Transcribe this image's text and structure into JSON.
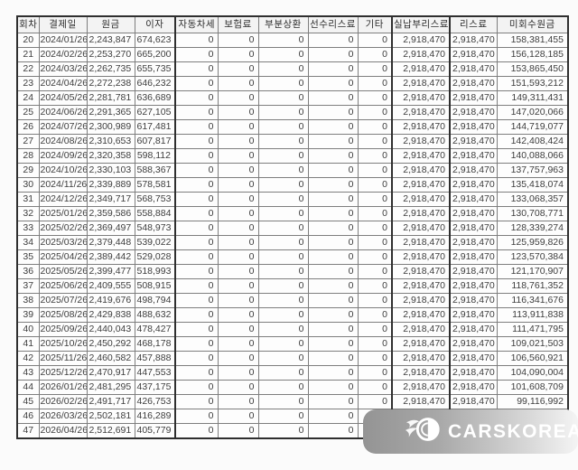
{
  "watermark": {
    "brand": "CARSKOREA",
    "icon": "flame-wheel-icon",
    "banner_gradient_start": "#949494",
    "banner_gradient_end": "#f4f4f4",
    "brand_text_color": "#ffffff"
  },
  "table": {
    "columns": [
      "회차",
      "결제일",
      "원금",
      "이자",
      "자동차세",
      "보험료",
      "부분상환",
      "선수리스료",
      "기타",
      "실납부리스료",
      "리스료",
      "미회수원금"
    ],
    "rows": [
      [
        "20",
        "2024/01/26",
        "2,243,847",
        "674,623",
        "0",
        "0",
        "0",
        "0",
        "0",
        "2,918,470",
        "2,918,470",
        "158,381,455"
      ],
      [
        "21",
        "2024/02/26",
        "2,253,270",
        "665,200",
        "0",
        "0",
        "0",
        "0",
        "0",
        "2,918,470",
        "2,918,470",
        "156,128,185"
      ],
      [
        "22",
        "2024/03/26",
        "2,262,735",
        "655,735",
        "0",
        "0",
        "0",
        "0",
        "0",
        "2,918,470",
        "2,918,470",
        "153,865,450"
      ],
      [
        "23",
        "2024/04/26",
        "2,272,238",
        "646,232",
        "0",
        "0",
        "0",
        "0",
        "0",
        "2,918,470",
        "2,918,470",
        "151,593,212"
      ],
      [
        "24",
        "2024/05/26",
        "2,281,781",
        "636,689",
        "0",
        "0",
        "0",
        "0",
        "0",
        "2,918,470",
        "2,918,470",
        "149,311,431"
      ],
      [
        "25",
        "2024/06/26",
        "2,291,365",
        "627,105",
        "0",
        "0",
        "0",
        "0",
        "0",
        "2,918,470",
        "2,918,470",
        "147,020,066"
      ],
      [
        "26",
        "2024/07/26",
        "2,300,989",
        "617,481",
        "0",
        "0",
        "0",
        "0",
        "0",
        "2,918,470",
        "2,918,470",
        "144,719,077"
      ],
      [
        "27",
        "2024/08/26",
        "2,310,653",
        "607,817",
        "0",
        "0",
        "0",
        "0",
        "0",
        "2,918,470",
        "2,918,470",
        "142,408,424"
      ],
      [
        "28",
        "2024/09/26",
        "2,320,358",
        "598,112",
        "0",
        "0",
        "0",
        "0",
        "0",
        "2,918,470",
        "2,918,470",
        "140,088,066"
      ],
      [
        "29",
        "2024/10/26",
        "2,330,103",
        "588,367",
        "0",
        "0",
        "0",
        "0",
        "0",
        "2,918,470",
        "2,918,470",
        "137,757,963"
      ],
      [
        "30",
        "2024/11/26",
        "2,339,889",
        "578,581",
        "0",
        "0",
        "0",
        "0",
        "0",
        "2,918,470",
        "2,918,470",
        "135,418,074"
      ],
      [
        "31",
        "2024/12/26",
        "2,349,717",
        "568,753",
        "0",
        "0",
        "0",
        "0",
        "0",
        "2,918,470",
        "2,918,470",
        "133,068,357"
      ],
      [
        "32",
        "2025/01/26",
        "2,359,586",
        "558,884",
        "0",
        "0",
        "0",
        "0",
        "0",
        "2,918,470",
        "2,918,470",
        "130,708,771"
      ],
      [
        "33",
        "2025/02/26",
        "2,369,497",
        "548,973",
        "0",
        "0",
        "0",
        "0",
        "0",
        "2,918,470",
        "2,918,470",
        "128,339,274"
      ],
      [
        "34",
        "2025/03/26",
        "2,379,448",
        "539,022",
        "0",
        "0",
        "0",
        "0",
        "0",
        "2,918,470",
        "2,918,470",
        "125,959,826"
      ],
      [
        "35",
        "2025/04/26",
        "2,389,442",
        "529,028",
        "0",
        "0",
        "0",
        "0",
        "0",
        "2,918,470",
        "2,918,470",
        "123,570,384"
      ],
      [
        "36",
        "2025/05/26",
        "2,399,477",
        "518,993",
        "0",
        "0",
        "0",
        "0",
        "0",
        "2,918,470",
        "2,918,470",
        "121,170,907"
      ],
      [
        "37",
        "2025/06/26",
        "2,409,555",
        "508,915",
        "0",
        "0",
        "0",
        "0",
        "0",
        "2,918,470",
        "2,918,470",
        "118,761,352"
      ],
      [
        "38",
        "2025/07/26",
        "2,419,676",
        "498,794",
        "0",
        "0",
        "0",
        "0",
        "0",
        "2,918,470",
        "2,918,470",
        "116,341,676"
      ],
      [
        "39",
        "2025/08/26",
        "2,429,838",
        "488,632",
        "0",
        "0",
        "0",
        "0",
        "0",
        "2,918,470",
        "2,918,470",
        "113,911,838"
      ],
      [
        "40",
        "2025/09/26",
        "2,440,043",
        "478,427",
        "0",
        "0",
        "0",
        "0",
        "0",
        "2,918,470",
        "2,918,470",
        "111,471,795"
      ],
      [
        "41",
        "2025/10/26",
        "2,450,292",
        "468,178",
        "0",
        "0",
        "0",
        "0",
        "0",
        "2,918,470",
        "2,918,470",
        "109,021,503"
      ],
      [
        "42",
        "2025/11/26",
        "2,460,582",
        "457,888",
        "0",
        "0",
        "0",
        "0",
        "0",
        "2,918,470",
        "2,918,470",
        "106,560,921"
      ],
      [
        "43",
        "2025/12/26",
        "2,470,917",
        "447,553",
        "0",
        "0",
        "0",
        "0",
        "0",
        "2,918,470",
        "2,918,470",
        "104,090,004"
      ],
      [
        "44",
        "2026/01/26",
        "2,481,295",
        "437,175",
        "0",
        "0",
        "0",
        "0",
        "0",
        "2,918,470",
        "2,918,470",
        "101,608,709"
      ],
      [
        "45",
        "2026/02/26",
        "2,491,717",
        "426,753",
        "0",
        "0",
        "0",
        "0",
        "0",
        "2,918,470",
        "2,918,470",
        "99,116,992"
      ],
      [
        "46",
        "2026/03/26",
        "2,502,181",
        "416,289",
        "0",
        "0",
        "0",
        "0",
        "",
        "",
        "",
        ""
      ],
      [
        "47",
        "2026/04/26",
        "2,512,691",
        "405,779",
        "0",
        "0",
        "0",
        "0",
        "",
        "",
        "",
        ""
      ]
    ]
  }
}
